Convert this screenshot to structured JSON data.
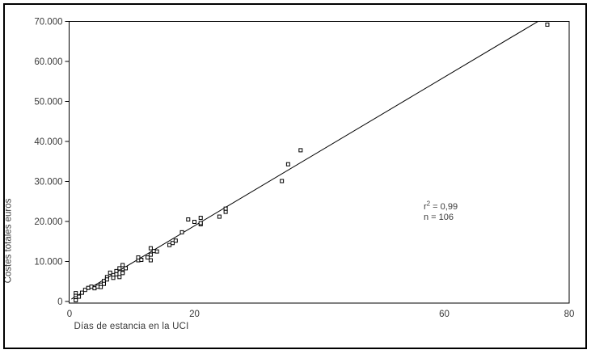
{
  "chart_data": {
    "type": "scatter",
    "title": "",
    "xlabel": "Días de estancia en la UCI",
    "ylabel": "Costes totales euros",
    "xlim": [
      0,
      80
    ],
    "ylim": [
      0,
      70000
    ],
    "grid": false,
    "x_ticks": [
      {
        "value": 0,
        "label": "0"
      },
      {
        "value": 20,
        "label": "20"
      },
      {
        "value": 60,
        "label": "60"
      },
      {
        "value": 80,
        "label": "80"
      }
    ],
    "y_ticks": [
      {
        "value": 0,
        "label": "0"
      },
      {
        "value": 10000,
        "label": "10.000"
      },
      {
        "value": 20000,
        "label": "20.000"
      },
      {
        "value": 30000,
        "label": "30.000"
      },
      {
        "value": 40000,
        "label": "40.000"
      },
      {
        "value": 50000,
        "label": "50.000"
      },
      {
        "value": 60000,
        "label": "60.000"
      },
      {
        "value": 70000,
        "label": "70.000"
      }
    ],
    "marker": "hollow-square",
    "points": [
      [
        1,
        2100
      ],
      [
        1,
        1400
      ],
      [
        1,
        800
      ],
      [
        1,
        300
      ],
      [
        1.5,
        1200
      ],
      [
        2,
        2200
      ],
      [
        2.5,
        2900
      ],
      [
        3,
        3400
      ],
      [
        3.5,
        3700
      ],
      [
        4,
        3300
      ],
      [
        4.5,
        3700
      ],
      [
        5,
        4200
      ],
      [
        5,
        3600
      ],
      [
        5.5,
        5100
      ],
      [
        5.5,
        4400
      ],
      [
        6,
        6100
      ],
      [
        6,
        5500
      ],
      [
        6.5,
        7200
      ],
      [
        7,
        6600
      ],
      [
        7,
        5900
      ],
      [
        7.5,
        7600
      ],
      [
        7.5,
        6800
      ],
      [
        8,
        8300
      ],
      [
        8,
        6100
      ],
      [
        8.5,
        7300
      ],
      [
        8.5,
        7100
      ],
      [
        8.5,
        9100
      ],
      [
        9,
        8300
      ],
      [
        11,
        10300
      ],
      [
        11,
        11000
      ],
      [
        11.5,
        10400
      ],
      [
        12.5,
        11000
      ],
      [
        13,
        11700
      ],
      [
        13,
        10300
      ],
      [
        13,
        13300
      ],
      [
        13.5,
        12600
      ],
      [
        14,
        12500
      ],
      [
        16,
        14100
      ],
      [
        16.5,
        14600
      ],
      [
        17,
        15200
      ],
      [
        18,
        17300
      ],
      [
        19,
        20500
      ],
      [
        20,
        19900
      ],
      [
        21,
        20900
      ],
      [
        21,
        19300
      ],
      [
        21,
        19600
      ],
      [
        24,
        21200
      ],
      [
        25,
        22400
      ],
      [
        25,
        23200
      ],
      [
        34,
        30100
      ],
      [
        35,
        34300
      ],
      [
        37,
        37800
      ],
      [
        76.5,
        69200
      ]
    ],
    "fit_line": {
      "slope": 929,
      "intercept": 320,
      "x_start": 0.3,
      "x_end": 75
    },
    "annotation": {
      "r_base": "r",
      "r_sup": "2",
      "r_rest": " = 0,99",
      "n_line": "n = 106"
    },
    "colors": {
      "frame": "#000000",
      "line": "#000000",
      "marker_stroke": "#000000",
      "marker_fill": "#ffffff",
      "text": "#3a3a3a",
      "background": "#ffffff"
    }
  }
}
